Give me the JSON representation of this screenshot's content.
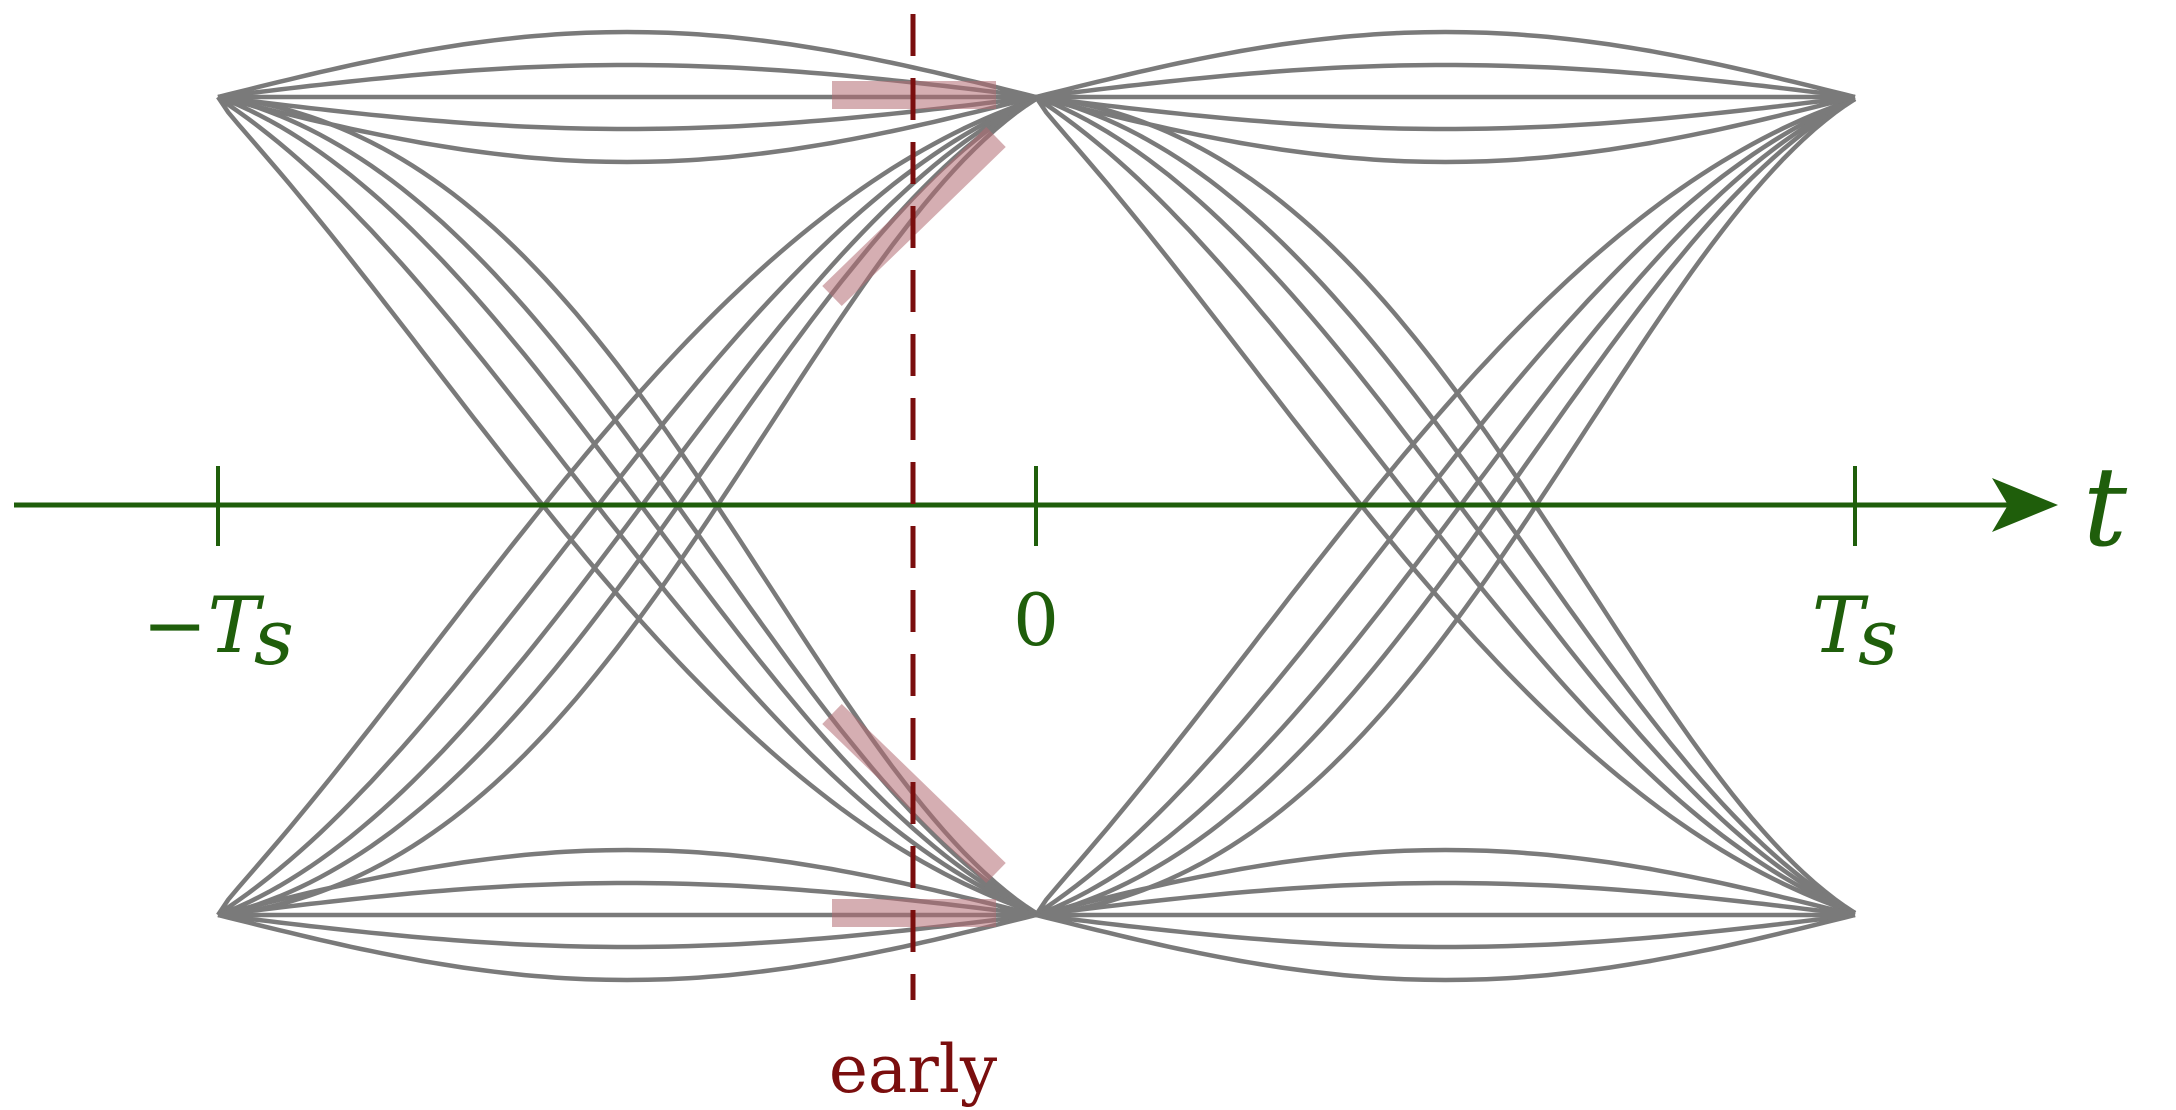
{
  "axis": {
    "variable": "t",
    "tick_labels": {
      "left": "−T",
      "left_sub": "s",
      "center": "0",
      "right": "T",
      "right_sub": "s"
    }
  },
  "marker": {
    "label": "early"
  },
  "colors": {
    "axis": "#1f5e0b",
    "traces": "#7a7a7a",
    "marker": "#7a0e0e",
    "highlight": "#b36b73"
  }
}
